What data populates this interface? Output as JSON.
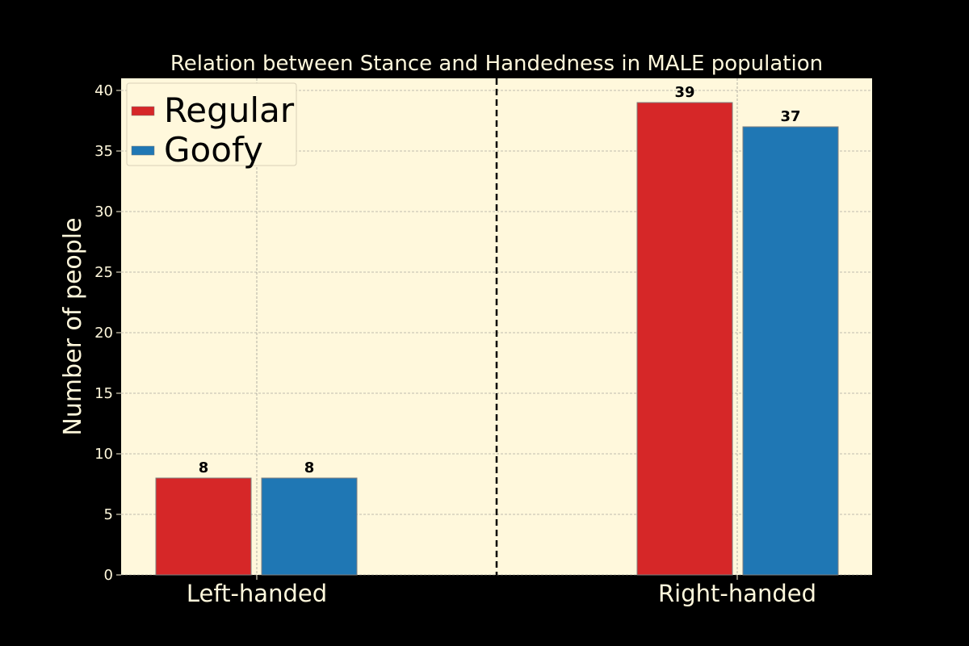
{
  "chart_data": {
    "type": "bar",
    "title": "Relation between Stance and Handedness in MALE population",
    "xlabel": "",
    "ylabel": "Number of people",
    "categories": [
      "Left-handed",
      "Right-handed"
    ],
    "series": [
      {
        "name": "Regular",
        "values": [
          8,
          39
        ],
        "color": "#d62728"
      },
      {
        "name": "Goofy",
        "values": [
          8,
          37
        ],
        "color": "#1f77b4"
      }
    ],
    "ylim": [
      0,
      41
    ],
    "yticks": [
      0,
      5,
      10,
      15,
      20,
      25,
      30,
      35,
      40
    ],
    "grid": true,
    "legend_position": "upper-left",
    "data_labels": true,
    "separator_line": "dashed vertical line between categories",
    "colors": {
      "figure_background": "#000000",
      "plot_background": "#fff8dc",
      "text": "#fff8dc",
      "grid": "#808080",
      "separator": "#000000"
    }
  }
}
